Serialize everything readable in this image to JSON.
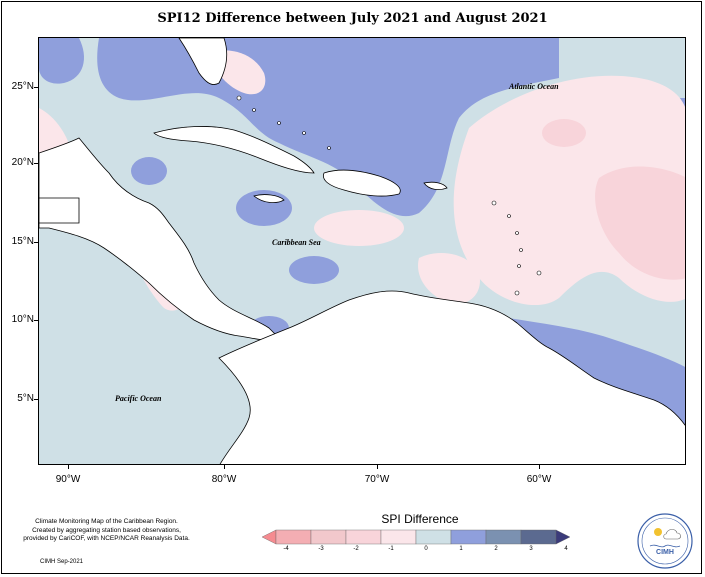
{
  "title": "SPI12 Difference between July 2021 and August 2021",
  "map": {
    "latitude_ticks": [
      "25°N",
      "20°N",
      "15°N",
      "10°N",
      "5°N"
    ],
    "longitude_ticks": [
      "90°W",
      "80°W",
      "70°W",
      "60°W"
    ],
    "place_labels": {
      "atlantic": "Atlantic Ocean",
      "caribbean": "Caribbean Sea",
      "pacific": "Pacific Ocean"
    },
    "colors": {
      "ocean_neutral": "#cfe0e6",
      "land": "#ffffff",
      "positive_1_2": "#8f9fdc",
      "negative_0_1": "#fbe6ea",
      "negative_1_2": "#f4c9cf"
    }
  },
  "legend": {
    "title": "SPI Difference",
    "tick_labels": [
      "-4",
      "-3",
      "-2",
      "-1",
      "0",
      "1",
      "2",
      "3",
      "4"
    ],
    "colors": [
      "#f58b90",
      "#f4aeb3",
      "#f2c8cc",
      "#fbe6ea",
      "#cfe0e6",
      "#8f9fdc",
      "#7b91b1",
      "#5b6a90",
      "#3b3b7a"
    ]
  },
  "credits": {
    "line1": "Climate Monitoring Map of the Caribbean Region.",
    "line2": "Created by aggregating station based observations,",
    "line3": "provided by CariCOF, with NCEP/NCAR Reanalysis Data.",
    "date": "CIMH Sep-2021"
  },
  "logo": {
    "text": "CIMH",
    "icon": "cimh-logo-icon"
  }
}
